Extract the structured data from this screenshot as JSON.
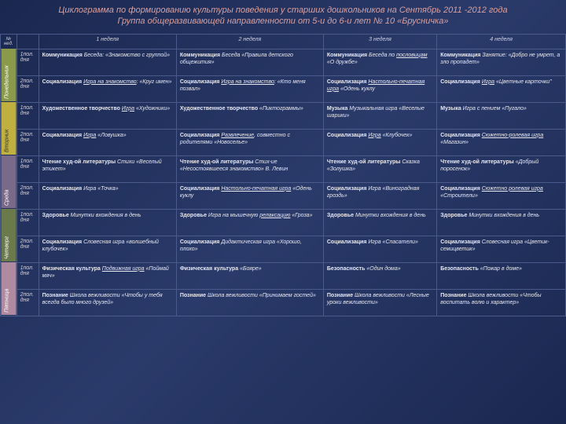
{
  "title_line1": "Циклограмма по формированию культуры поведения у старших дошкольников на Сентябрь 2011 -2012 года",
  "title_line2": "Группа общеразвивающей направленности от 5-и до 6-и лет № 10 «Брусничка»",
  "corner": "№ нед.",
  "weeks": [
    "1 неделя",
    "2 неделя",
    "3 неделя",
    "4 неделя"
  ],
  "halves": [
    "1пол. дня",
    "2пол. дня"
  ],
  "days": [
    "Понедельник",
    "Вторник",
    "Среда",
    "Четверг",
    "Пятница"
  ],
  "rows": [
    [
      {
        "b": "Коммуникация",
        "i": " Беседа: «Знакомство с группой»"
      },
      {
        "b": "Коммуникация",
        "i": " Беседа «Правила детского общежития»"
      },
      {
        "b": "Коммуникация",
        "i": " Беседа по ",
        "u": "пословицам",
        "i2": " «О дружбе»"
      },
      {
        "b": "Коммуникация",
        "i": " Занятие: «Добро не умрет, а зло пропадет»"
      }
    ],
    [
      {
        "b": "Социализация",
        "i": " ",
        "u": "Игра на знакомство",
        "i2": ": «Круг имен»"
      },
      {
        "b": "Социализация",
        "i": " ",
        "u": "Игра на знакомство",
        "i2": ": «Кто меня позвал»"
      },
      {
        "b": "Социализация",
        "i": " ",
        "u": "Настольно-печатная игра",
        "i2": " «Одень куклу"
      },
      {
        "b": "Социализация",
        "i": " ",
        "u": "Игра",
        "i2": " «Цветные карточки\""
      }
    ],
    [
      {
        "b": "Художественное творчество",
        "i": " ",
        "u": "Игра",
        "i2": " «Художники»"
      },
      {
        "b": "Художественное творчество",
        "i": " «Пиктограммы»"
      },
      {
        "b": "Музыка",
        "i": " Музыкальная игра «Веселые шарики»"
      },
      {
        "b": "Музыка",
        "i": " Игра с пением «Пугало»"
      }
    ],
    [
      {
        "b": "Социализация",
        "i": " ",
        "u": "Игра",
        "i2": " «Ловушка»"
      },
      {
        "b": "Социализация",
        "i": " ",
        "u": "Развлечение",
        "i2": ", совместно с родителями «Новоселье»"
      },
      {
        "b": "Социализация",
        "i": " ",
        "u": "Игра",
        "i2": " «Клубочек»"
      },
      {
        "b": "Социализация",
        "i": " ",
        "u": "Сюжетно-ролевая игра",
        "i2": " «Магазин»"
      }
    ],
    [
      {
        "b": "Чтение худ-ой литературы",
        "i": " Стихи «Веселый этикет»"
      },
      {
        "b": "Чтение худ-ой литературы",
        "i": " Стих-ие «Несостоявшееся знакомство» В. Левин"
      },
      {
        "b": "Чтение худ-ой литературы",
        "i": " Сказка «Золушка»"
      },
      {
        "b": "Чтение худ-ой литературы",
        "i": " «Добрый поросенок»"
      }
    ],
    [
      {
        "b": "Социализация",
        "i": " Игра «Точка»"
      },
      {
        "b": "Социализация",
        "i": " ",
        "u": "Настольно-печатная игра",
        "i2": " «Одень куклу"
      },
      {
        "b": "Социализация",
        "i": " Игра «Виноградная гроздь»"
      },
      {
        "b": "Социализация",
        "i": " ",
        "u": "Сюжетно ролевая игра",
        "i2": " «Строители»"
      }
    ],
    [
      {
        "b": "Здоровье",
        "i": " Минутки вхождения в день"
      },
      {
        "b": "Здоровье",
        "i": " Игра на мышечную ",
        "u": "релаксацию",
        "i2": " «Гроза»"
      },
      {
        "b": "Здоровье",
        "i": " Минутки вхождения в день"
      },
      {
        "b": "Здоровье",
        "i": " Минутки вхождения в день"
      }
    ],
    [
      {
        "b": "Социализация",
        "i": " Словесная игра «волшебный клубочек»"
      },
      {
        "b": "Социализация",
        "i": " Дидактическая игра «Хорошо, плохо»"
      },
      {
        "b": "Социализация",
        "i": " Игра «Спасатели»"
      },
      {
        "b": "Социализация",
        "i": " Словесная игра «Цветик-семицветик»"
      }
    ],
    [
      {
        "b": "Физическая культура",
        "i": " ",
        "u": "Подвижная игра",
        "i2": " «Поймай мяч»"
      },
      {
        "b": "Физическая культура",
        "i": " «Бояре»"
      },
      {
        "b": "Безопасность",
        "i": " «Один дома»"
      },
      {
        "b": "Безопасность",
        "i": " «Пожар в доме»"
      }
    ],
    [
      {
        "b": "Познание",
        "i": " Школа вежливости «Чтобы у тебя всегда было много друзей»"
      },
      {
        "b": "Познание",
        "i": " Школа вежливости «Принимаем гостей»"
      },
      {
        "b": "Познание",
        "i": " Школа вежливости «Лесные уроки вежливости»"
      },
      {
        "b": "Познание",
        "i": " Школа вежливости «Чтобы воспитать волю и характер»"
      }
    ]
  ]
}
